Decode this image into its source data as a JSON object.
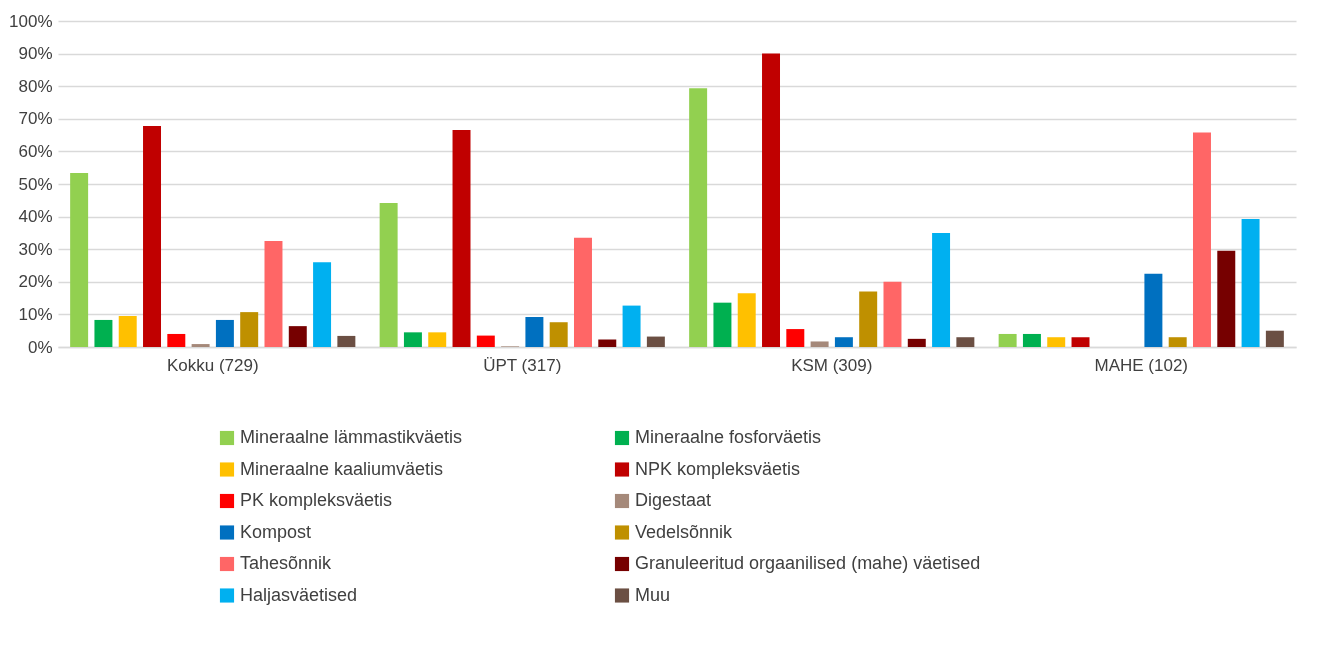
{
  "chart_data": {
    "type": "bar",
    "categories": [
      "Kokku (729)",
      "ÜPT (317)",
      "KSM (309)",
      "MAHE (102)"
    ],
    "series": [
      {
        "name": "Mineraalne lämmastikväetis",
        "color": "#92d050",
        "values": [
          53.4,
          44.2,
          79.4,
          4
        ]
      },
      {
        "name": "Mineraalne fosforväetis",
        "color": "#00b050",
        "values": [
          8.3,
          4.5,
          13.6,
          4
        ]
      },
      {
        "name": "Mineraalne kaaliumväetis",
        "color": "#ffc000",
        "values": [
          9.5,
          4.5,
          16.5,
          3
        ]
      },
      {
        "name": "NPK kompleksväetis",
        "color": "#c00000",
        "values": [
          67.8,
          66.6,
          90,
          3
        ]
      },
      {
        "name": "PK kompleksväetis",
        "color": "#ff0000",
        "values": [
          4,
          3.5,
          5.5,
          0
        ]
      },
      {
        "name": "Digestaat",
        "color": "#a5897a",
        "values": [
          0.9,
          0.2,
          1.7,
          0
        ]
      },
      {
        "name": "Kompost",
        "color": "#0070c0",
        "values": [
          8.3,
          9.2,
          3,
          22.5
        ]
      },
      {
        "name": "Vedelsõnnik",
        "color": "#bf9000",
        "values": [
          10.7,
          7.6,
          17,
          3
        ]
      },
      {
        "name": "Tahesõnnik",
        "color": "#ff6666",
        "values": [
          32.5,
          33.5,
          20,
          65.8
        ]
      },
      {
        "name": "Granuleeritud orgaanilised (mahe) väetised",
        "color": "#760000",
        "values": [
          6.4,
          2.3,
          2.5,
          29.5
        ]
      },
      {
        "name": "Haljasväetised",
        "color": "#00b0f0",
        "values": [
          26,
          12.7,
          35,
          39.3
        ]
      },
      {
        "name": "Muu",
        "color": "#6b4f43",
        "values": [
          3.4,
          3.2,
          3,
          5
        ]
      }
    ],
    "ylim": [
      0,
      100
    ],
    "yticks": [
      {
        "value": 0,
        "label": "0%"
      },
      {
        "value": 10,
        "label": "10%"
      },
      {
        "value": 20,
        "label": "20%"
      },
      {
        "value": 30,
        "label": "30%"
      },
      {
        "value": 40,
        "label": "40%"
      },
      {
        "value": 50,
        "label": "50%"
      },
      {
        "value": 60,
        "label": "60%"
      },
      {
        "value": 70,
        "label": "70%"
      },
      {
        "value": 80,
        "label": "80%"
      },
      {
        "value": 90,
        "label": "90%"
      },
      {
        "value": 100,
        "label": "100%"
      }
    ],
    "grid": "y",
    "legend": "bottom"
  }
}
